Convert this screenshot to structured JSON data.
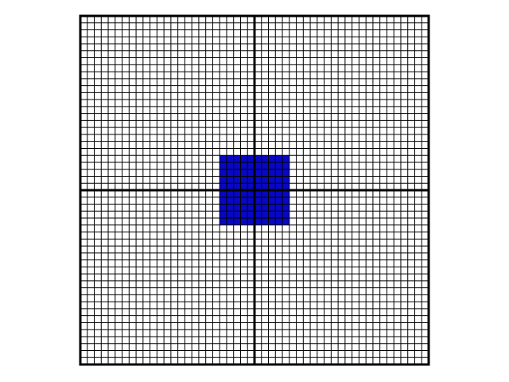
{
  "board": {
    "cells_per_side": 50,
    "major_division_every": 25,
    "cell_color": "#ffffff",
    "grid_line_color": "#000000",
    "background_color": "#ffffff"
  },
  "selection": {
    "col_start": 20,
    "row_start": 20,
    "cols": 10,
    "rows": 10,
    "fill_color": "#0707c4"
  }
}
